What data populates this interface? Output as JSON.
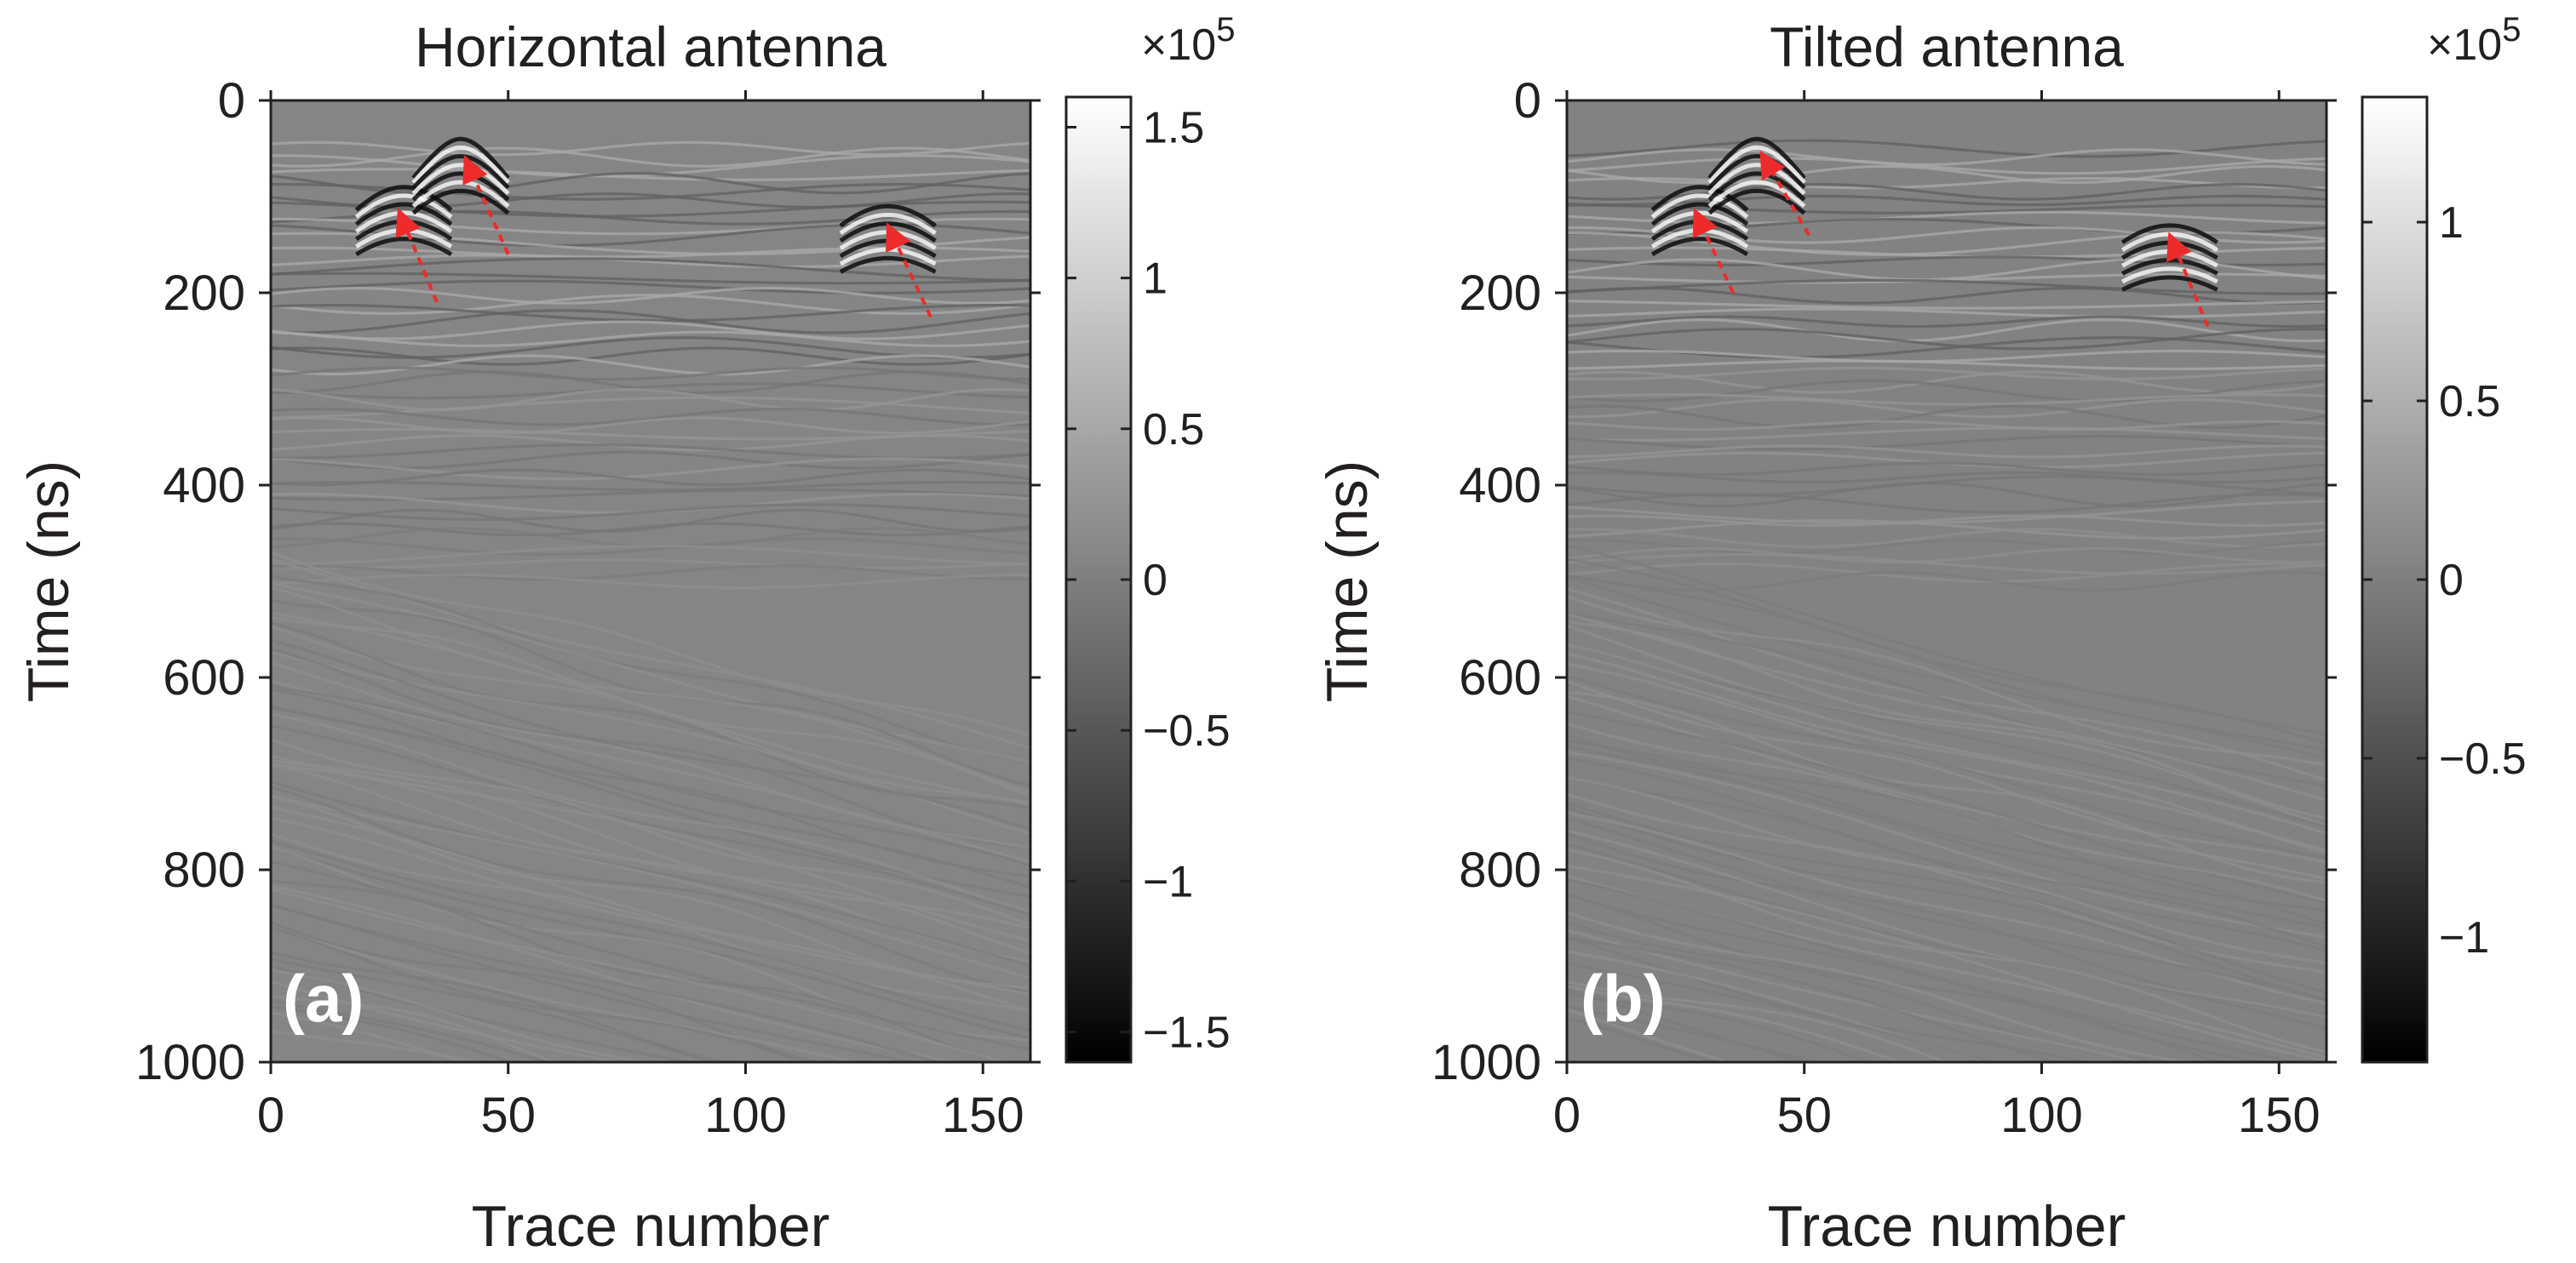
{
  "figure": {
    "colormap": "gray",
    "arrow_color": "#ee2b2b"
  },
  "panels": [
    {
      "id": "a",
      "title": "Horizontal antenna",
      "panel_label": "(a)",
      "ylabel": "Time (ns)",
      "xlabel": "Trace number",
      "xticks": [
        "0",
        "50",
        "100",
        "150"
      ],
      "yticks": [
        "0",
        "200",
        "400",
        "600",
        "800",
        "1000"
      ],
      "colorbar": {
        "multiplier": "×10",
        "exponent": "5",
        "ticks": [
          "1.5",
          "1",
          "0.5",
          "0",
          "−0.5",
          "−1",
          "−1.5"
        ]
      }
    },
    {
      "id": "b",
      "title": "Tilted antenna",
      "panel_label": "(b)",
      "ylabel": "Time (ns)",
      "xlabel": "Trace number",
      "xticks": [
        "0",
        "50",
        "100",
        "150"
      ],
      "yticks": [
        "0",
        "200",
        "400",
        "600",
        "800",
        "1000"
      ],
      "colorbar": {
        "multiplier": "×10",
        "exponent": "5",
        "ticks": [
          "1",
          "0.5",
          "0",
          "−0.5",
          "−1"
        ]
      }
    }
  ],
  "chart_data": [
    {
      "type": "heatmap",
      "title": "Horizontal antenna",
      "xlabel": "Trace number",
      "ylabel": "Time (ns)",
      "xlim": [
        0,
        160
      ],
      "ylim": [
        1000,
        0
      ],
      "xtick_values": [
        0,
        50,
        100,
        150
      ],
      "ytick_values": [
        0,
        200,
        400,
        600,
        800,
        1000
      ],
      "colorbar": {
        "label_scale": 100000,
        "clim": [
          -1.6,
          1.6
        ],
        "tick_values": [
          1.5,
          1,
          0.5,
          0,
          -0.5,
          -1,
          -1.5
        ]
      },
      "reflections": [
        {
          "trace": 28,
          "time": 110
        },
        {
          "trace": 40,
          "time": 60
        },
        {
          "trace": 130,
          "time": 130
        }
      ],
      "arrows": [
        {
          "from": [
            35,
            210
          ],
          "to": [
            27,
            115
          ]
        },
        {
          "from": [
            50,
            160
          ],
          "to": [
            41,
            60
          ]
        },
        {
          "from": [
            139,
            225
          ],
          "to": [
            130,
            130
          ]
        }
      ]
    },
    {
      "type": "heatmap",
      "title": "Tilted antenna",
      "xlabel": "Trace number",
      "ylabel": "Time (ns)",
      "xlim": [
        0,
        160
      ],
      "ylim": [
        1000,
        0
      ],
      "xtick_values": [
        0,
        50,
        100,
        150
      ],
      "ytick_values": [
        0,
        200,
        400,
        600,
        800,
        1000
      ],
      "colorbar": {
        "label_scale": 100000,
        "clim": [
          -1.35,
          1.35
        ],
        "tick_values": [
          1,
          0.5,
          0,
          -0.5,
          -1
        ]
      },
      "reflections": [
        {
          "trace": 28,
          "time": 110
        },
        {
          "trace": 40,
          "time": 60
        },
        {
          "trace": 127,
          "time": 150
        }
      ],
      "arrows": [
        {
          "from": [
            35,
            200
          ],
          "to": [
            27,
            115
          ]
        },
        {
          "from": [
            51,
            140
          ],
          "to": [
            41,
            55
          ]
        },
        {
          "from": [
            135,
            235
          ],
          "to": [
            127,
            140
          ]
        }
      ]
    }
  ]
}
